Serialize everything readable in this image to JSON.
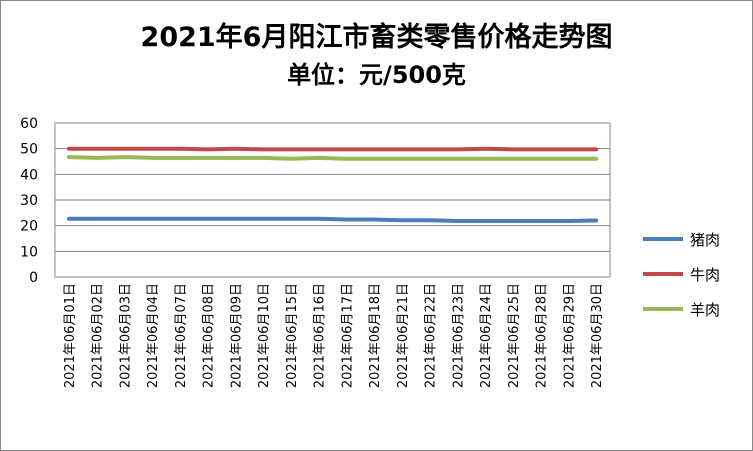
{
  "chart_data": {
    "type": "line",
    "title": "2021年6月阳江市畜类零售价格走势图",
    "subtitle": "单位：元/500克",
    "xlabel": "",
    "ylabel": "",
    "ylim": [
      0,
      60
    ],
    "yticks": [
      0,
      10,
      20,
      30,
      40,
      50,
      60
    ],
    "grid": true,
    "legend_position": "right",
    "categories": [
      "2021年06月01日",
      "2021年06月02日",
      "2021年06月03日",
      "2021年06月04日",
      "2021年06月07日",
      "2021年06月08日",
      "2021年06月09日",
      "2021年06月10日",
      "2021年06月15日",
      "2021年06月16日",
      "2021年06月17日",
      "2021年06月18日",
      "2021年06月21日",
      "2021年06月22日",
      "2021年06月23日",
      "2021年06月24日",
      "2021年06月25日",
      "2021年06月28日",
      "2021年06月29日",
      "2021年06月30日"
    ],
    "series": [
      {
        "name": "猪肉",
        "color": "#4a7ebb",
        "values": [
          22.7,
          22.7,
          22.7,
          22.7,
          22.7,
          22.7,
          22.7,
          22.7,
          22.7,
          22.7,
          22.4,
          22.4,
          22.1,
          22.1,
          21.8,
          21.8,
          21.8,
          21.8,
          21.8,
          22.0
        ]
      },
      {
        "name": "牛肉",
        "color": "#be4b48",
        "values": [
          50.0,
          50.0,
          50.0,
          50.0,
          50.0,
          49.7,
          50.0,
          49.7,
          49.7,
          49.7,
          49.7,
          49.7,
          49.7,
          49.7,
          49.7,
          50.0,
          49.7,
          49.7,
          49.7,
          49.7
        ]
      },
      {
        "name": "羊肉",
        "color": "#98b954",
        "values": [
          46.7,
          46.4,
          46.7,
          46.4,
          46.4,
          46.4,
          46.4,
          46.4,
          46.1,
          46.4,
          46.1,
          46.1,
          46.1,
          46.1,
          46.1,
          46.1,
          46.1,
          46.1,
          46.1,
          46.1
        ]
      }
    ]
  }
}
